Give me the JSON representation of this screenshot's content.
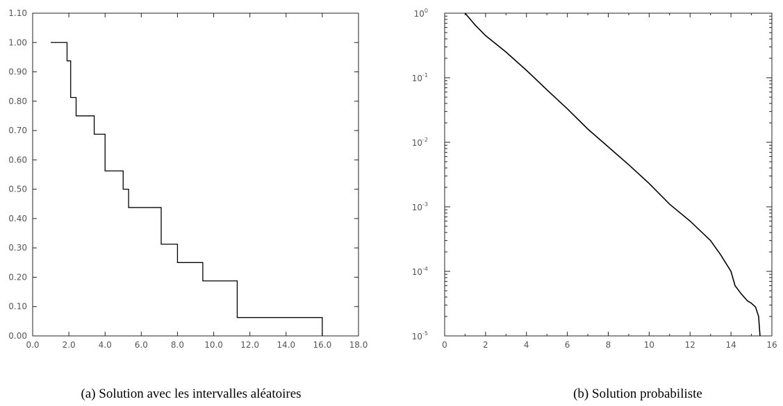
{
  "chart_data": [
    {
      "type": "line",
      "step": true,
      "caption": "(a) Solution avec les intervalles aléatoires",
      "xlim": [
        0.0,
        18.0
      ],
      "ylim": [
        0.0,
        1.1
      ],
      "xticks": [
        "0.0",
        "2.0",
        "4.0",
        "6.0",
        "8.0",
        "10.0",
        "12.0",
        "14.0",
        "16.0",
        "18.0"
      ],
      "yticks": [
        "0.00",
        "0.10",
        "0.20",
        "0.30",
        "0.40",
        "0.50",
        "0.60",
        "0.70",
        "0.80",
        "0.90",
        "1.00",
        "1.10"
      ],
      "series": [
        {
          "x": [
            1.0,
            1.9,
            2.1,
            2.4,
            3.4,
            4.0,
            5.0,
            5.3,
            7.1,
            8.0,
            9.4,
            11.3,
            16.0
          ],
          "y": [
            1.0,
            0.9375,
            0.8125,
            0.75,
            0.6875,
            0.5625,
            0.5,
            0.4375,
            0.3125,
            0.25,
            0.1875,
            0.0625,
            0.0
          ]
        }
      ],
      "grid": false
    },
    {
      "type": "line",
      "caption": "(b) Solution probabiliste",
      "xlim": [
        0,
        16
      ],
      "ylim": [
        1e-05,
        1
      ],
      "yscale": "log",
      "xticks": [
        "0",
        "2",
        "4",
        "6",
        "8",
        "10",
        "12",
        "14",
        "16"
      ],
      "yticks": [
        {
          "base": "10",
          "exp": "-5"
        },
        {
          "base": "10",
          "exp": "-4"
        },
        {
          "base": "10",
          "exp": "-3"
        },
        {
          "base": "10",
          "exp": "-2"
        },
        {
          "base": "10",
          "exp": "-1"
        },
        {
          "base": "10",
          "exp": "0"
        }
      ],
      "series": [
        {
          "x": [
            1.0,
            1.5,
            2.0,
            3.0,
            4.0,
            5.0,
            6.0,
            7.0,
            8.0,
            9.0,
            10.0,
            11.0,
            12.0,
            13.0,
            13.5,
            14.0,
            14.2,
            14.5,
            14.8,
            15.0,
            15.2,
            15.35,
            15.42
          ],
          "y": [
            1.0,
            0.65,
            0.45,
            0.25,
            0.13,
            0.065,
            0.033,
            0.016,
            0.0085,
            0.0045,
            0.0023,
            0.0011,
            0.0006,
            0.0003,
            0.00018,
            0.0001,
            6e-05,
            4.5e-05,
            3.5e-05,
            3.2e-05,
            2.8e-05,
            2e-05,
            1e-05
          ]
        }
      ],
      "grid": false
    }
  ]
}
